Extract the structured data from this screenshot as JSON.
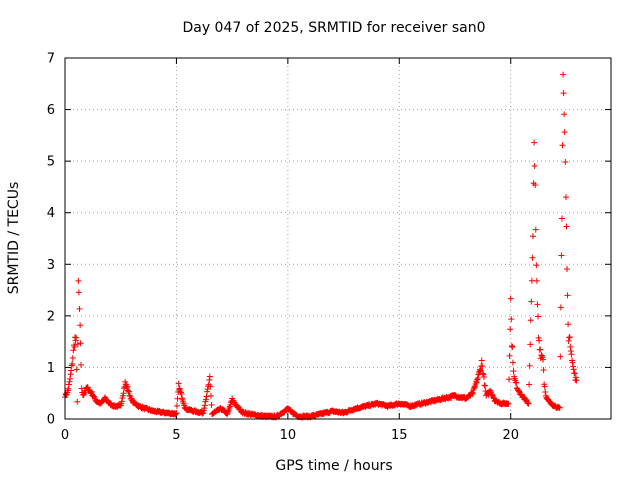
{
  "chart_data": {
    "type": "scatter",
    "title": "Day 047 of 2025, SRMTID for receiver san0",
    "xlabel": "GPS time / hours",
    "ylabel": "SRMTID / TECUs",
    "xlim": [
      0,
      24.5
    ],
    "ylim": [
      0,
      7
    ],
    "xticks": [
      0,
      5,
      10,
      15,
      20
    ],
    "yticks": [
      0,
      1,
      2,
      3,
      4,
      5,
      6,
      7
    ],
    "grid": true,
    "marker": "+",
    "series": [
      {
        "name": "SRMTID",
        "color": "#ff0000",
        "anchors": [
          [
            0.0,
            0.45
          ],
          [
            0.1,
            0.5
          ],
          [
            0.2,
            0.7
          ],
          [
            0.3,
            1.0
          ],
          [
            0.4,
            1.4
          ],
          [
            0.45,
            1.55
          ],
          [
            0.5,
            1.5
          ],
          [
            0.55,
            0.35
          ],
          [
            0.6,
            2.55
          ],
          [
            0.62,
            2.4
          ],
          [
            0.65,
            2.1
          ],
          [
            0.68,
            1.8
          ],
          [
            0.72,
            1.0
          ],
          [
            0.75,
            0.6
          ],
          [
            0.8,
            0.45
          ],
          [
            0.9,
            0.55
          ],
          [
            1.0,
            0.6
          ],
          [
            1.2,
            0.5
          ],
          [
            1.4,
            0.35
          ],
          [
            1.6,
            0.3
          ],
          [
            1.8,
            0.4
          ],
          [
            2.0,
            0.3
          ],
          [
            2.2,
            0.25
          ],
          [
            2.5,
            0.25
          ],
          [
            2.7,
            0.7
          ],
          [
            2.8,
            0.6
          ],
          [
            3.0,
            0.35
          ],
          [
            3.3,
            0.25
          ],
          [
            3.6,
            0.2
          ],
          [
            4.0,
            0.15
          ],
          [
            4.5,
            0.12
          ],
          [
            5.0,
            0.1
          ],
          [
            5.1,
            0.65
          ],
          [
            5.2,
            0.5
          ],
          [
            5.4,
            0.2
          ],
          [
            5.8,
            0.15
          ],
          [
            6.2,
            0.12
          ],
          [
            6.5,
            0.78
          ],
          [
            6.6,
            0.1
          ],
          [
            7.0,
            0.2
          ],
          [
            7.3,
            0.1
          ],
          [
            7.5,
            0.38
          ],
          [
            7.7,
            0.25
          ],
          [
            8.0,
            0.12
          ],
          [
            8.5,
            0.08
          ],
          [
            9.0,
            0.05
          ],
          [
            9.5,
            0.05
          ],
          [
            10.0,
            0.2
          ],
          [
            10.2,
            0.12
          ],
          [
            10.5,
            0.05
          ],
          [
            11.0,
            0.05
          ],
          [
            11.5,
            0.1
          ],
          [
            12.0,
            0.15
          ],
          [
            12.5,
            0.12
          ],
          [
            13.0,
            0.2
          ],
          [
            13.5,
            0.25
          ],
          [
            14.0,
            0.3
          ],
          [
            14.5,
            0.25
          ],
          [
            15.0,
            0.3
          ],
          [
            15.5,
            0.25
          ],
          [
            16.0,
            0.3
          ],
          [
            16.5,
            0.35
          ],
          [
            17.0,
            0.4
          ],
          [
            17.5,
            0.45
          ],
          [
            18.0,
            0.4
          ],
          [
            18.3,
            0.5
          ],
          [
            18.6,
            0.9
          ],
          [
            18.7,
            1.1
          ],
          [
            18.9,
            0.45
          ],
          [
            19.1,
            0.55
          ],
          [
            19.3,
            0.35
          ],
          [
            19.6,
            0.3
          ],
          [
            19.9,
            0.3
          ],
          [
            20.0,
            2.3
          ],
          [
            20.05,
            1.5
          ],
          [
            20.15,
            0.8
          ],
          [
            20.3,
            0.6
          ],
          [
            20.5,
            0.45
          ],
          [
            20.8,
            0.3
          ],
          [
            21.0,
            3.4
          ],
          [
            21.05,
            5.7
          ],
          [
            21.1,
            4.3
          ],
          [
            21.15,
            2.9
          ],
          [
            21.25,
            1.6
          ],
          [
            21.35,
            1.25
          ],
          [
            21.45,
            1.2
          ],
          [
            21.5,
            0.7
          ],
          [
            21.6,
            0.4
          ],
          [
            21.8,
            0.3
          ],
          [
            22.0,
            0.25
          ],
          [
            22.2,
            0.2
          ],
          [
            22.3,
            4.1
          ],
          [
            22.35,
            6.7
          ],
          [
            22.42,
            5.5
          ],
          [
            22.48,
            4.3
          ],
          [
            22.55,
            2.3
          ],
          [
            22.6,
            1.6
          ],
          [
            22.7,
            1.4
          ],
          [
            22.8,
            1.0
          ],
          [
            22.9,
            0.8
          ],
          [
            22.95,
            0.75
          ]
        ]
      }
    ]
  }
}
